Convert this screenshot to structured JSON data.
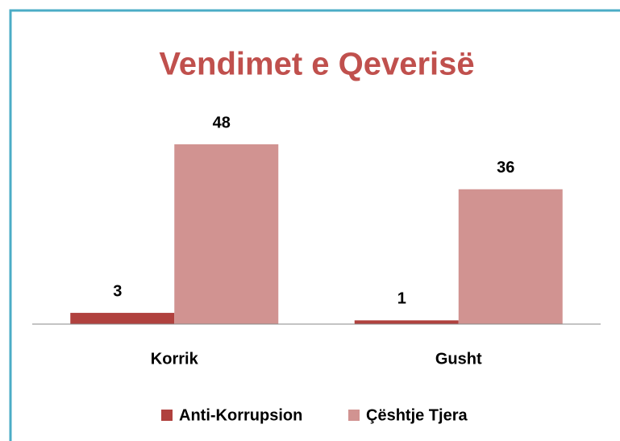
{
  "chart_data": {
    "type": "bar",
    "title": "Vendimet e Qeverisë",
    "categories": [
      "Korrik",
      "Gusht"
    ],
    "series": [
      {
        "name": "Anti-Korrupsion",
        "color": "#b0413e",
        "values": [
          3,
          1
        ]
      },
      {
        "name": "Çështje Tjera",
        "color": "#d19391",
        "values": [
          48,
          36
        ]
      }
    ],
    "legend": "bottom"
  }
}
